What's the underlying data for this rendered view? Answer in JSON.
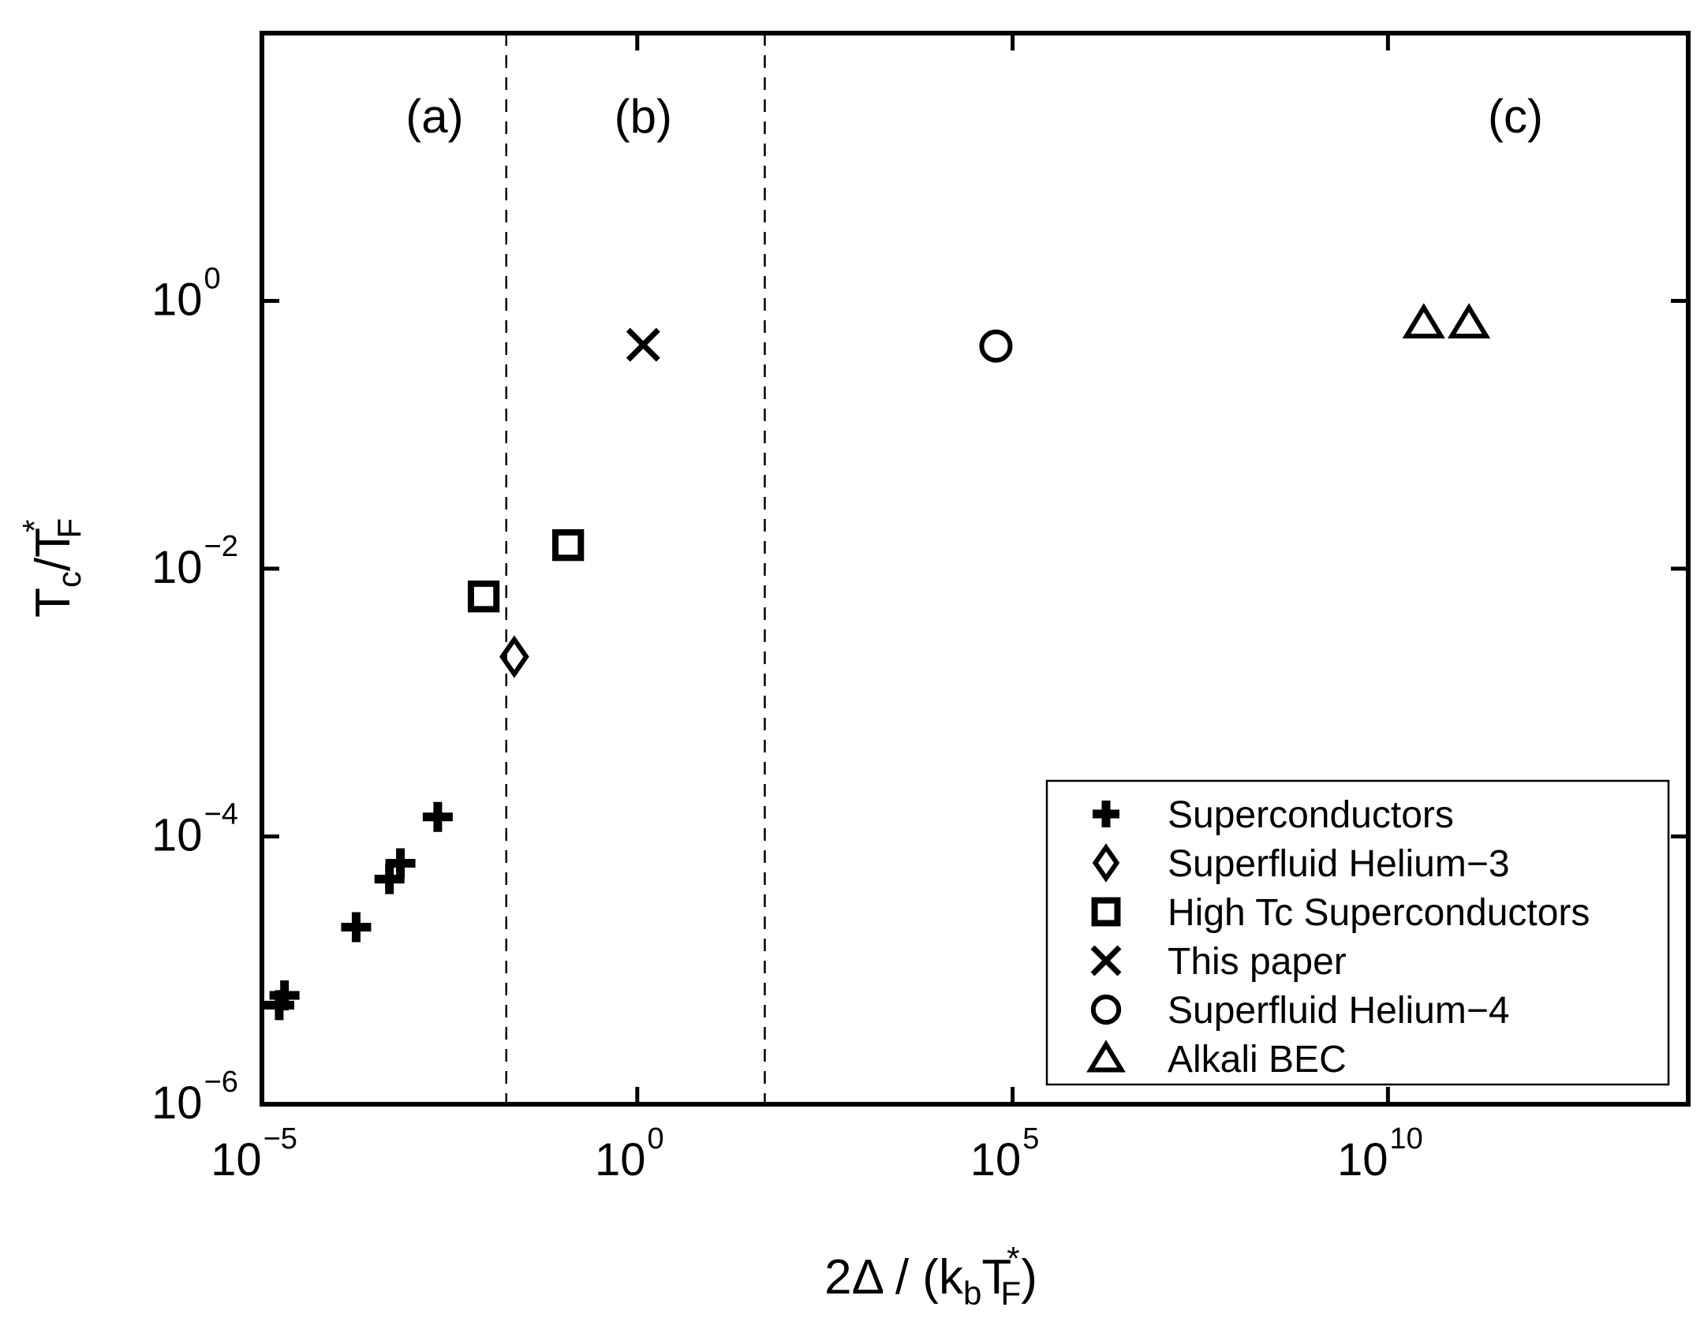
{
  "chart_data": {
    "type": "scatter",
    "xscale": "log",
    "yscale": "log",
    "xlim": [
      1e-05,
      100000000000000.0
    ],
    "ylim": [
      1e-06,
      100
    ],
    "xlabel": "2Δ / (k_b T*_F)",
    "ylabel": "T_c/T*_F",
    "x_ticks": [
      {
        "value": 1e-05,
        "base": "10",
        "exp": "−5"
      },
      {
        "value": 1,
        "base": "10",
        "exp": "0"
      },
      {
        "value": 100000.0,
        "base": "10",
        "exp": "5"
      },
      {
        "value": 10000000000.0,
        "base": "10",
        "exp": "10"
      }
    ],
    "y_ticks": [
      {
        "value": 1e-06,
        "base": "10",
        "exp": "−6"
      },
      {
        "value": 0.0001,
        "base": "10",
        "exp": "−4"
      },
      {
        "value": 0.01,
        "base": "10",
        "exp": "−2"
      },
      {
        "value": 1,
        "base": "10",
        "exp": "0"
      }
    ],
    "vlines": [
      0.018,
      50
    ],
    "region_labels": [
      {
        "text": "(a)",
        "x": 0.002,
        "y": 20
      },
      {
        "text": "(b)",
        "x": 1.2,
        "y": 20
      },
      {
        "text": "(c)",
        "x": 500000000000.0,
        "y": 20
      }
    ],
    "series": [
      {
        "name": "Superconductors",
        "marker": "plus",
        "points": [
          [
            1.7e-05,
            5.5e-06
          ],
          [
            2e-05,
            6.5e-06
          ],
          [
            0.00018,
            2.1e-05
          ],
          [
            0.0005,
            4.8e-05
          ],
          [
            0.0007,
            6.3e-05
          ],
          [
            0.0022,
            0.00014
          ]
        ]
      },
      {
        "name": "Superfluid Helium−3",
        "marker": "diamond",
        "points": [
          [
            0.023,
            0.0022
          ]
        ]
      },
      {
        "name": "High Tc Superconductors",
        "marker": "square",
        "points": [
          [
            0.009,
            0.0062
          ],
          [
            0.12,
            0.015
          ]
        ]
      },
      {
        "name": "This paper",
        "marker": "x",
        "points": [
          [
            1.2,
            0.47
          ]
        ]
      },
      {
        "name": "Superfluid Helium−4",
        "marker": "circle",
        "points": [
          [
            60000.0,
            0.46
          ]
        ]
      },
      {
        "name": "Alkali BEC",
        "marker": "triangle",
        "points": [
          [
            30000000000.0,
            0.68
          ],
          [
            120000000000.0,
            0.68
          ]
        ]
      }
    ],
    "legend_position": "bottom-right",
    "grid": false
  }
}
